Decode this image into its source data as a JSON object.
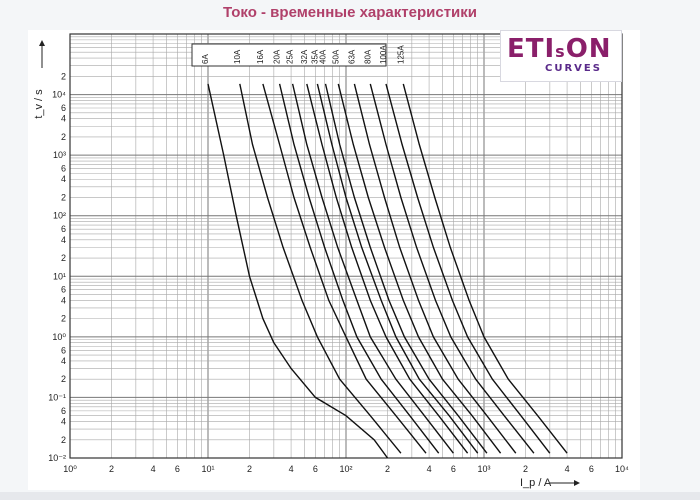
{
  "page": {
    "title": "Токо - временные характеристики"
  },
  "logo": {
    "main": "ETI",
    "small": "s",
    "main2": "ON",
    "sub": "CURVES"
  },
  "chart_data": {
    "type": "line",
    "xscale": "log",
    "yscale": "log",
    "xlim": [
      1,
      10000
    ],
    "ylim": [
      0.01,
      100000
    ],
    "xlabel": "I_p / A",
    "ylabel": "t_v / s",
    "grid": true,
    "x_tick_labels": [
      {
        "v": 1,
        "t": "10⁰"
      },
      {
        "v": 2,
        "t": "2"
      },
      {
        "v": 4,
        "t": "4"
      },
      {
        "v": 6,
        "t": "6"
      },
      {
        "v": 10,
        "t": "10¹"
      },
      {
        "v": 20,
        "t": "2"
      },
      {
        "v": 40,
        "t": "4"
      },
      {
        "v": 60,
        "t": "6"
      },
      {
        "v": 100,
        "t": "10²"
      },
      {
        "v": 200,
        "t": "2"
      },
      {
        "v": 400,
        "t": "4"
      },
      {
        "v": 600,
        "t": "6"
      },
      {
        "v": 1000,
        "t": "10³"
      },
      {
        "v": 2000,
        "t": "2"
      },
      {
        "v": 4000,
        "t": "4"
      },
      {
        "v": 6000,
        "t": "6"
      },
      {
        "v": 10000,
        "t": "10⁴"
      }
    ],
    "y_tick_labels": [
      {
        "v": 0.01,
        "t": "10⁻²"
      },
      {
        "v": 0.02,
        "t": "2"
      },
      {
        "v": 0.04,
        "t": "4"
      },
      {
        "v": 0.06,
        "t": "6"
      },
      {
        "v": 0.1,
        "t": "10⁻¹"
      },
      {
        "v": 0.2,
        "t": "2"
      },
      {
        "v": 0.4,
        "t": "4"
      },
      {
        "v": 0.6,
        "t": "6"
      },
      {
        "v": 1,
        "t": "10⁰"
      },
      {
        "v": 2,
        "t": "2"
      },
      {
        "v": 4,
        "t": "4"
      },
      {
        "v": 6,
        "t": "6"
      },
      {
        "v": 10,
        "t": "10¹"
      },
      {
        "v": 20,
        "t": "2"
      },
      {
        "v": 40,
        "t": "4"
      },
      {
        "v": 60,
        "t": "6"
      },
      {
        "v": 100,
        "t": "10²"
      },
      {
        "v": 200,
        "t": "2"
      },
      {
        "v": 400,
        "t": "4"
      },
      {
        "v": 600,
        "t": "6"
      },
      {
        "v": 1000,
        "t": "10³"
      },
      {
        "v": 2000,
        "t": "2"
      },
      {
        "v": 4000,
        "t": "4"
      },
      {
        "v": 6000,
        "t": "6"
      },
      {
        "v": 10000,
        "t": "10⁴"
      },
      {
        "v": 20000,
        "t": "2"
      }
    ],
    "series": [
      {
        "name": "6A",
        "points": [
          [
            10,
            15000
          ],
          [
            13,
            1000
          ],
          [
            16,
            100
          ],
          [
            20,
            10
          ],
          [
            25,
            2
          ],
          [
            30,
            0.8
          ],
          [
            40,
            0.3
          ],
          [
            60,
            0.1
          ],
          [
            100,
            0.05
          ],
          [
            160,
            0.02
          ],
          [
            200,
            0.01
          ]
        ]
      },
      {
        "name": "10A",
        "points": [
          [
            17,
            15000
          ],
          [
            21,
            1500
          ],
          [
            27,
            200
          ],
          [
            35,
            30
          ],
          [
            48,
            4
          ],
          [
            62,
            1
          ],
          [
            90,
            0.2
          ],
          [
            150,
            0.05
          ],
          [
            250,
            0.012
          ]
        ]
      },
      {
        "name": "16A",
        "points": [
          [
            25,
            15000
          ],
          [
            33,
            1500
          ],
          [
            42,
            200
          ],
          [
            55,
            30
          ],
          [
            75,
            4
          ],
          [
            100,
            1
          ],
          [
            140,
            0.2
          ],
          [
            230,
            0.05
          ],
          [
            380,
            0.012
          ]
        ]
      },
      {
        "name": "20A",
        "points": [
          [
            33,
            15000
          ],
          [
            42,
            1500
          ],
          [
            54,
            200
          ],
          [
            70,
            30
          ],
          [
            95,
            4
          ],
          [
            120,
            1
          ],
          [
            180,
            0.2
          ],
          [
            290,
            0.05
          ],
          [
            470,
            0.012
          ]
        ]
      },
      {
        "name": "25A",
        "points": [
          [
            41,
            15000
          ],
          [
            52,
            1500
          ],
          [
            67,
            200
          ],
          [
            87,
            30
          ],
          [
            120,
            4
          ],
          [
            150,
            1
          ],
          [
            230,
            0.2
          ],
          [
            370,
            0.05
          ],
          [
            600,
            0.012
          ]
        ]
      },
      {
        "name": "32A",
        "points": [
          [
            52,
            15000
          ],
          [
            67,
            1500
          ],
          [
            85,
            200
          ],
          [
            110,
            30
          ],
          [
            150,
            4
          ],
          [
            195,
            1
          ],
          [
            290,
            0.2
          ],
          [
            470,
            0.05
          ],
          [
            760,
            0.012
          ]
        ]
      },
      {
        "name": "35A",
        "points": [
          [
            62,
            15000
          ],
          [
            79,
            1500
          ],
          [
            100,
            200
          ],
          [
            130,
            30
          ],
          [
            180,
            4
          ],
          [
            230,
            1
          ],
          [
            340,
            0.2
          ],
          [
            560,
            0.05
          ],
          [
            900,
            0.012
          ]
        ]
      },
      {
        "name": "40A",
        "points": [
          [
            71,
            15000
          ],
          [
            90,
            1500
          ],
          [
            115,
            200
          ],
          [
            150,
            30
          ],
          [
            205,
            4
          ],
          [
            265,
            1
          ],
          [
            400,
            0.2
          ],
          [
            650,
            0.05
          ],
          [
            1050,
            0.012
          ]
        ]
      },
      {
        "name": "50A",
        "points": [
          [
            88,
            15000
          ],
          [
            113,
            1500
          ],
          [
            145,
            200
          ],
          [
            190,
            30
          ],
          [
            260,
            4
          ],
          [
            335,
            1
          ],
          [
            500,
            0.2
          ],
          [
            820,
            0.05
          ],
          [
            1320,
            0.012
          ]
        ]
      },
      {
        "name": "63A",
        "points": [
          [
            115,
            15000
          ],
          [
            148,
            1500
          ],
          [
            190,
            200
          ],
          [
            245,
            30
          ],
          [
            335,
            4
          ],
          [
            430,
            1
          ],
          [
            650,
            0.2
          ],
          [
            1050,
            0.05
          ],
          [
            1700,
            0.012
          ]
        ]
      },
      {
        "name": "80A",
        "points": [
          [
            150,
            15000
          ],
          [
            195,
            1500
          ],
          [
            250,
            200
          ],
          [
            325,
            30
          ],
          [
            445,
            4
          ],
          [
            575,
            1
          ],
          [
            870,
            0.2
          ],
          [
            1400,
            0.05
          ],
          [
            2300,
            0.012
          ]
        ]
      },
      {
        "name": "100A",
        "points": [
          [
            195,
            15000
          ],
          [
            255,
            1500
          ],
          [
            330,
            200
          ],
          [
            430,
            30
          ],
          [
            590,
            4
          ],
          [
            760,
            1
          ],
          [
            1150,
            0.2
          ],
          [
            1850,
            0.05
          ],
          [
            3000,
            0.012
          ]
        ]
      },
      {
        "name": "125A",
        "points": [
          [
            260,
            15000
          ],
          [
            340,
            1500
          ],
          [
            440,
            200
          ],
          [
            570,
            30
          ],
          [
            780,
            4
          ],
          [
            1000,
            1
          ],
          [
            1500,
            0.2
          ],
          [
            2450,
            0.05
          ],
          [
            4000,
            0.012
          ]
        ]
      }
    ]
  }
}
